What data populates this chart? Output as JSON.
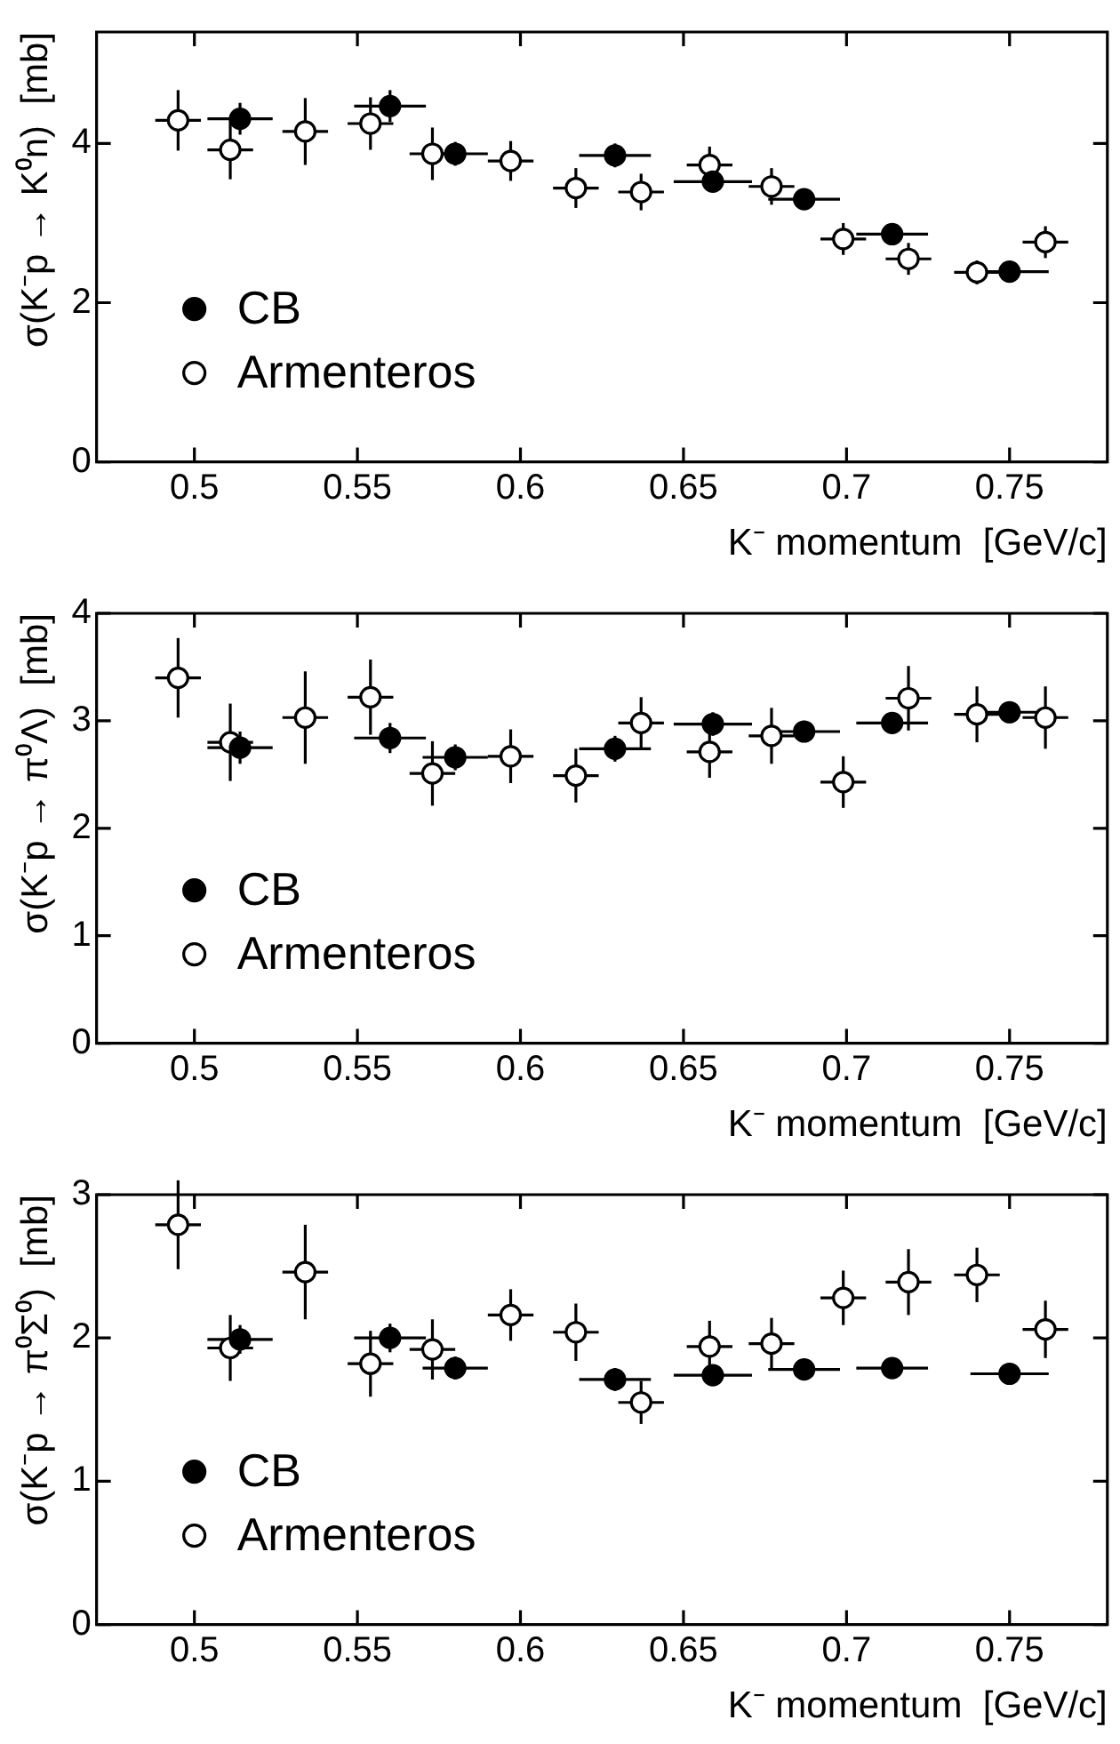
{
  "chart_data": [
    {
      "type": "scatter",
      "xlabel": "K⁻ momentum  [GeV/c]",
      "ylabel": "σ(K⁻p → K⁰n)  [mb]",
      "xlim": [
        0.47,
        0.78
      ],
      "xticks": [
        0.5,
        0.55,
        0.6,
        0.65,
        0.7,
        0.75
      ],
      "ylim": [
        0,
        5.4
      ],
      "yticks": [
        0,
        2,
        4
      ],
      "legend": "bottom left",
      "marker": "circle",
      "series": [
        {
          "name": "CB",
          "color": "#000000",
          "x": [
            0.514,
            0.56,
            0.58,
            0.629,
            0.659,
            0.687,
            0.714,
            0.75
          ],
          "values": [
            4.31,
            4.47,
            3.87,
            3.85,
            3.52,
            3.3,
            2.86,
            2.39
          ],
          "errors": [
            0.2,
            0.2,
            0.15,
            0.15,
            0.12,
            0.1,
            0.08,
            0.08
          ],
          "xerrors": [
            0.01,
            0.011,
            0.01,
            0.011,
            0.012,
            0.011,
            0.011,
            0.012
          ]
        },
        {
          "name": "Armenteros",
          "color": "#ffffff",
          "x": [
            0.495,
            0.511,
            0.534,
            0.554,
            0.573,
            0.597,
            0.617,
            0.637,
            0.658,
            0.677,
            0.699,
            0.719,
            0.74,
            0.761
          ],
          "values": [
            4.29,
            3.92,
            4.15,
            4.25,
            3.87,
            3.78,
            3.44,
            3.39,
            3.73,
            3.46,
            2.8,
            2.55,
            2.38,
            2.76
          ],
          "errors": [
            0.38,
            0.37,
            0.42,
            0.33,
            0.33,
            0.25,
            0.25,
            0.23,
            0.23,
            0.23,
            0.2,
            0.2,
            0.15,
            0.2
          ],
          "xerrors": [
            0.007,
            0.007,
            0.007,
            0.007,
            0.007,
            0.007,
            0.007,
            0.007,
            0.007,
            0.007,
            0.007,
            0.007,
            0.007,
            0.007
          ]
        }
      ]
    },
    {
      "type": "scatter",
      "xlabel": "K⁻ momentum  [GeV/c]",
      "ylabel": "σ(K⁻p → π⁰Λ)  [mb]",
      "xlim": [
        0.47,
        0.78
      ],
      "xticks": [
        0.5,
        0.55,
        0.6,
        0.65,
        0.7,
        0.75
      ],
      "ylim": [
        0,
        4
      ],
      "yticks": [
        0,
        1,
        2,
        3,
        4
      ],
      "legend": "bottom left",
      "marker": "circle",
      "series": [
        {
          "name": "CB",
          "color": "#000000",
          "x": [
            0.514,
            0.56,
            0.58,
            0.629,
            0.659,
            0.687,
            0.714,
            0.75
          ],
          "values": [
            2.75,
            2.84,
            2.66,
            2.74,
            2.97,
            2.9,
            2.98,
            3.08
          ],
          "errors": [
            0.15,
            0.14,
            0.12,
            0.12,
            0.11,
            0.1,
            0.1,
            0.1
          ],
          "xerrors": [
            0.01,
            0.011,
            0.01,
            0.011,
            0.012,
            0.011,
            0.011,
            0.012
          ]
        },
        {
          "name": "Armenteros",
          "color": "#ffffff",
          "x": [
            0.495,
            0.511,
            0.534,
            0.554,
            0.573,
            0.597,
            0.617,
            0.637,
            0.658,
            0.677,
            0.699,
            0.719,
            0.74,
            0.761
          ],
          "values": [
            3.4,
            2.8,
            3.03,
            3.22,
            2.51,
            2.67,
            2.49,
            2.98,
            2.71,
            2.86,
            2.43,
            3.21,
            3.06,
            3.03
          ],
          "errors": [
            0.37,
            0.36,
            0.43,
            0.35,
            0.3,
            0.25,
            0.25,
            0.24,
            0.24,
            0.26,
            0.24,
            0.3,
            0.26,
            0.29
          ],
          "xerrors": [
            0.007,
            0.007,
            0.007,
            0.007,
            0.007,
            0.007,
            0.007,
            0.007,
            0.007,
            0.007,
            0.007,
            0.007,
            0.007,
            0.007
          ]
        }
      ]
    },
    {
      "type": "scatter",
      "xlabel": "K⁻ momentum  [GeV/c]",
      "ylabel": "σ(K⁻p → π⁰Σ⁰)  [mb]",
      "xlim": [
        0.47,
        0.78
      ],
      "xticks": [
        0.5,
        0.55,
        0.6,
        0.65,
        0.7,
        0.75
      ],
      "ylim": [
        0,
        3
      ],
      "yticks": [
        0,
        1,
        2,
        3
      ],
      "legend": "bottom left",
      "marker": "circle",
      "series": [
        {
          "name": "CB",
          "color": "#000000",
          "x": [
            0.514,
            0.56,
            0.58,
            0.629,
            0.659,
            0.687,
            0.714,
            0.75
          ],
          "values": [
            1.99,
            2.0,
            1.79,
            1.71,
            1.74,
            1.78,
            1.79,
            1.75
          ],
          "errors": [
            0.1,
            0.1,
            0.08,
            0.08,
            0.07,
            0.07,
            0.06,
            0.06
          ],
          "xerrors": [
            0.01,
            0.011,
            0.01,
            0.011,
            0.012,
            0.011,
            0.011,
            0.012
          ]
        },
        {
          "name": "Armenteros",
          "color": "#ffffff",
          "x": [
            0.495,
            0.511,
            0.534,
            0.554,
            0.573,
            0.597,
            0.617,
            0.637,
            0.658,
            0.677,
            0.699,
            0.719,
            0.74,
            0.761
          ],
          "values": [
            2.79,
            1.93,
            2.46,
            1.82,
            1.92,
            2.16,
            2.04,
            1.55,
            1.94,
            1.96,
            2.28,
            2.39,
            2.44,
            2.06
          ],
          "errors": [
            0.31,
            0.23,
            0.33,
            0.23,
            0.21,
            0.18,
            0.2,
            0.15,
            0.18,
            0.18,
            0.19,
            0.23,
            0.19,
            0.2
          ],
          "xerrors": [
            0.007,
            0.007,
            0.007,
            0.007,
            0.007,
            0.007,
            0.007,
            0.007,
            0.007,
            0.007,
            0.007,
            0.007,
            0.007,
            0.007
          ]
        }
      ]
    }
  ]
}
